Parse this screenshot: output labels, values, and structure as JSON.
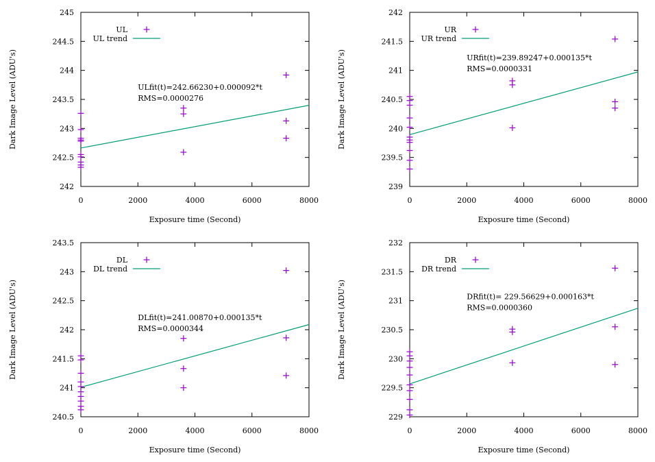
{
  "colors": {
    "points": "#9400d3",
    "trend": "#009e73",
    "axis": "#000000"
  },
  "chart_data": [
    {
      "type": "scatter",
      "title": "",
      "xlabel": "Exposure time (Second)",
      "ylabel": "Dark Image Level (ADU's)",
      "xlim": [
        0,
        8000
      ],
      "ylim": [
        242,
        245
      ],
      "xticks": [
        0,
        2000,
        4000,
        6000,
        8000
      ],
      "xtick_labels": [
        "0",
        "2000",
        "4000",
        "6000",
        "8000"
      ],
      "yticks": [
        242,
        242.5,
        243,
        243.5,
        244,
        244.5,
        245
      ],
      "ytick_labels": [
        "242",
        "242.5",
        "243",
        "243.5",
        "244",
        "244.5",
        "245"
      ],
      "legend": {
        "points": "UL",
        "trend": "UL trend"
      },
      "legend_position": "top-left",
      "fit_label": "ULfit(t)=242.66230+0.000092*t",
      "rms_label": "RMS=0.0000276",
      "fit": {
        "intercept": 242.6623,
        "slope": 9.2e-05
      },
      "points": [
        {
          "x": 0,
          "y": 243.26
        },
        {
          "x": 0,
          "y": 242.98
        },
        {
          "x": 0,
          "y": 242.83
        },
        {
          "x": 0,
          "y": 242.8
        },
        {
          "x": 0,
          "y": 242.78
        },
        {
          "x": 0,
          "y": 242.55
        },
        {
          "x": 0,
          "y": 242.51
        },
        {
          "x": 0,
          "y": 242.42
        },
        {
          "x": 0,
          "y": 242.37
        },
        {
          "x": 0,
          "y": 242.33
        },
        {
          "x": 3600,
          "y": 243.35
        },
        {
          "x": 3600,
          "y": 243.25
        },
        {
          "x": 3600,
          "y": 242.59
        },
        {
          "x": 7200,
          "y": 243.92
        },
        {
          "x": 7200,
          "y": 243.13
        },
        {
          "x": 7200,
          "y": 242.83
        }
      ]
    },
    {
      "type": "scatter",
      "title": "",
      "xlabel": "Exposure time (Second)",
      "ylabel": "Dark Image Level (ADU's)",
      "xlim": [
        0,
        8000
      ],
      "ylim": [
        239,
        242
      ],
      "xticks": [
        0,
        2000,
        4000,
        6000,
        8000
      ],
      "xtick_labels": [
        "0",
        "2000",
        "4000",
        "6000",
        "8000"
      ],
      "yticks": [
        239,
        239.5,
        240,
        240.5,
        241,
        241.5,
        242
      ],
      "ytick_labels": [
        "239",
        "239.5",
        "240",
        "240.5",
        "241",
        "241.5",
        "242"
      ],
      "legend": {
        "points": "UR",
        "trend": "UR trend"
      },
      "legend_position": "top-left",
      "fit_label": "URfit(t)=239.89247+0.000135*t",
      "rms_label": "RMS=0.0000331",
      "fit": {
        "intercept": 239.89247,
        "slope": 0.000135
      },
      "points": [
        {
          "x": 0,
          "y": 240.55
        },
        {
          "x": 0,
          "y": 240.48
        },
        {
          "x": 0,
          "y": 240.4
        },
        {
          "x": 0,
          "y": 240.18
        },
        {
          "x": 0,
          "y": 240.02
        },
        {
          "x": 0,
          "y": 239.85
        },
        {
          "x": 0,
          "y": 239.8
        },
        {
          "x": 0,
          "y": 239.76
        },
        {
          "x": 0,
          "y": 239.62
        },
        {
          "x": 0,
          "y": 239.45
        },
        {
          "x": 0,
          "y": 239.3
        },
        {
          "x": 3600,
          "y": 240.82
        },
        {
          "x": 3600,
          "y": 240.75
        },
        {
          "x": 3600,
          "y": 240.01
        },
        {
          "x": 7200,
          "y": 241.54
        },
        {
          "x": 7200,
          "y": 240.46
        },
        {
          "x": 7200,
          "y": 240.35
        }
      ]
    },
    {
      "type": "scatter",
      "title": "",
      "xlabel": "Exposure time (Second)",
      "ylabel": "Dark Image Level (ADU's)",
      "xlim": [
        0,
        8000
      ],
      "ylim": [
        240.5,
        243.5
      ],
      "xticks": [
        0,
        2000,
        4000,
        6000,
        8000
      ],
      "xtick_labels": [
        "0",
        "2000",
        "4000",
        "6000",
        "8000"
      ],
      "yticks": [
        240.5,
        241,
        241.5,
        242,
        242.5,
        243,
        243.5
      ],
      "ytick_labels": [
        "240.5",
        "241",
        "241.5",
        "242",
        "242.5",
        "243",
        "243.5"
      ],
      "legend": {
        "points": "DL",
        "trend": "DL trend"
      },
      "legend_position": "top-left",
      "fit_label": "DLfit(t)=241.00870+0.000135*t",
      "rms_label": "RMS=0.0000344",
      "fit": {
        "intercept": 241.0087,
        "slope": 0.000135
      },
      "points": [
        {
          "x": 0,
          "y": 241.55
        },
        {
          "x": 0,
          "y": 241.48
        },
        {
          "x": 0,
          "y": 241.25
        },
        {
          "x": 0,
          "y": 241.1
        },
        {
          "x": 0,
          "y": 241.02
        },
        {
          "x": 0,
          "y": 240.93
        },
        {
          "x": 0,
          "y": 240.85
        },
        {
          "x": 0,
          "y": 240.77
        },
        {
          "x": 0,
          "y": 240.68
        },
        {
          "x": 0,
          "y": 240.62
        },
        {
          "x": 3600,
          "y": 241.85
        },
        {
          "x": 3600,
          "y": 241.33
        },
        {
          "x": 3600,
          "y": 241.0
        },
        {
          "x": 7200,
          "y": 243.02
        },
        {
          "x": 7200,
          "y": 241.86
        },
        {
          "x": 7200,
          "y": 241.21
        }
      ]
    },
    {
      "type": "scatter",
      "title": "",
      "xlabel": "Exposure time (Second)",
      "ylabel": "Dark Image Level (ADU's)",
      "xlim": [
        0,
        8000
      ],
      "ylim": [
        229,
        232
      ],
      "xticks": [
        0,
        2000,
        4000,
        6000,
        8000
      ],
      "xtick_labels": [
        "0",
        "2000",
        "4000",
        "6000",
        "8000"
      ],
      "yticks": [
        229,
        229.5,
        230,
        230.5,
        231,
        231.5,
        232
      ],
      "ytick_labels": [
        "229",
        "229.5",
        "230",
        "230.5",
        "231",
        "231.5",
        "232"
      ],
      "legend": {
        "points": "DR",
        "trend": "DR trend"
      },
      "legend_position": "top-left",
      "fit_label": "DRfit(t)= 229.56629+0.000163*t",
      "rms_label": "RMS=0.0000360",
      "fit": {
        "intercept": 229.56629,
        "slope": 0.000163
      },
      "points": [
        {
          "x": 0,
          "y": 230.12
        },
        {
          "x": 0,
          "y": 230.05
        },
        {
          "x": 0,
          "y": 229.96
        },
        {
          "x": 0,
          "y": 229.85
        },
        {
          "x": 0,
          "y": 229.72
        },
        {
          "x": 0,
          "y": 229.55
        },
        {
          "x": 0,
          "y": 229.45
        },
        {
          "x": 0,
          "y": 229.3
        },
        {
          "x": 0,
          "y": 229.12
        },
        {
          "x": 0,
          "y": 229.03
        },
        {
          "x": 3600,
          "y": 230.51
        },
        {
          "x": 3600,
          "y": 230.46
        },
        {
          "x": 3600,
          "y": 229.93
        },
        {
          "x": 7200,
          "y": 231.56
        },
        {
          "x": 7200,
          "y": 230.55
        },
        {
          "x": 7200,
          "y": 229.9
        }
      ]
    }
  ]
}
